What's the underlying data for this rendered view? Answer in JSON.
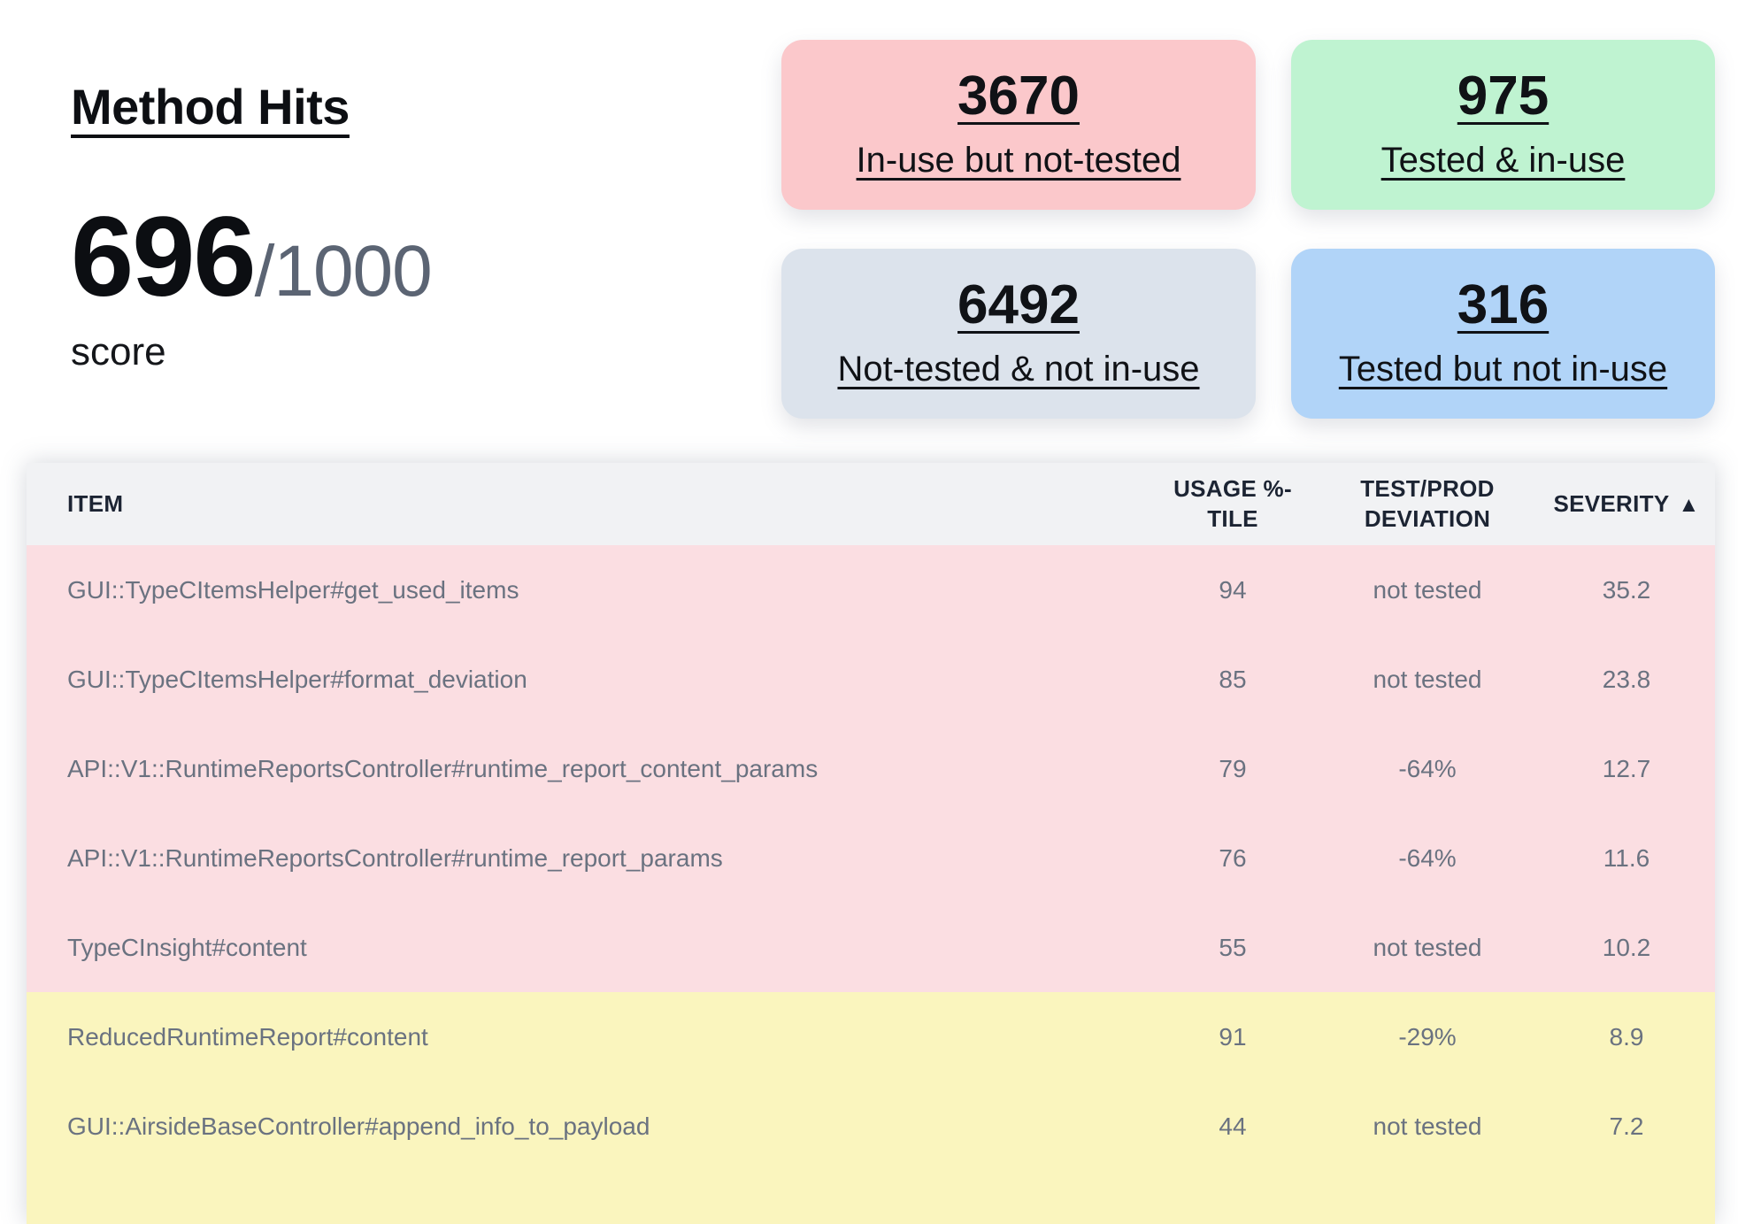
{
  "header": {
    "title": "Method Hits",
    "score": {
      "value": "696",
      "total": "/1000",
      "label": "score"
    }
  },
  "stats": [
    {
      "id": "in-use-not-tested",
      "value": "3670",
      "label": "In-use but not-tested",
      "bg": "#fbc8cb"
    },
    {
      "id": "tested-in-use",
      "value": "975",
      "label": "Tested & in-use",
      "bg": "#bff3d1"
    },
    {
      "id": "not-tested-not-in-use",
      "value": "6492",
      "label": "Not-tested & not in-use",
      "bg": "#dce3ec"
    },
    {
      "id": "tested-not-in-use",
      "value": "316",
      "label": "Tested but not in-use",
      "bg": "#b1d4f8"
    }
  ],
  "table": {
    "columns": [
      "ITEM",
      "USAGE %-TILE",
      "TEST/PROD DEVIATION",
      "SEVERITY"
    ],
    "sort": {
      "column": "SEVERITY",
      "direction": "ascending",
      "icon": "▲"
    },
    "rows": [
      {
        "item": "GUI::TypeCItemsHelper#get_used_items",
        "usage": "94",
        "deviation": "not tested",
        "severity": "35.2",
        "tone": "red"
      },
      {
        "item": "GUI::TypeCItemsHelper#format_deviation",
        "usage": "85",
        "deviation": "not tested",
        "severity": "23.8",
        "tone": "red"
      },
      {
        "item": "API::V1::RuntimeReportsController#runtime_report_content_params",
        "usage": "79",
        "deviation": "-64%",
        "severity": "12.7",
        "tone": "red"
      },
      {
        "item": "API::V1::RuntimeReportsController#runtime_report_params",
        "usage": "76",
        "deviation": "-64%",
        "severity": "11.6",
        "tone": "red"
      },
      {
        "item": "TypeCInsight#content",
        "usage": "55",
        "deviation": "not tested",
        "severity": "10.2",
        "tone": "red"
      },
      {
        "item": "ReducedRuntimeReport#content",
        "usage": "91",
        "deviation": "-29%",
        "severity": "8.9",
        "tone": "yellow"
      },
      {
        "item": "GUI::AirsideBaseController#append_info_to_payload",
        "usage": "44",
        "deviation": "not tested",
        "severity": "7.2",
        "tone": "yellow"
      }
    ]
  },
  "colors": {
    "card_red": "#fbc8cb",
    "card_green": "#bff3d1",
    "card_gray": "#dce3ec",
    "card_blue": "#b1d4f8",
    "row_red": "#fbdee2",
    "row_yellow": "#faf5be",
    "table_header_bg": "#f1f2f4",
    "table_header_text": "#1c2433",
    "row_text": "#6a7280",
    "score_total_text": "#5b6473"
  }
}
